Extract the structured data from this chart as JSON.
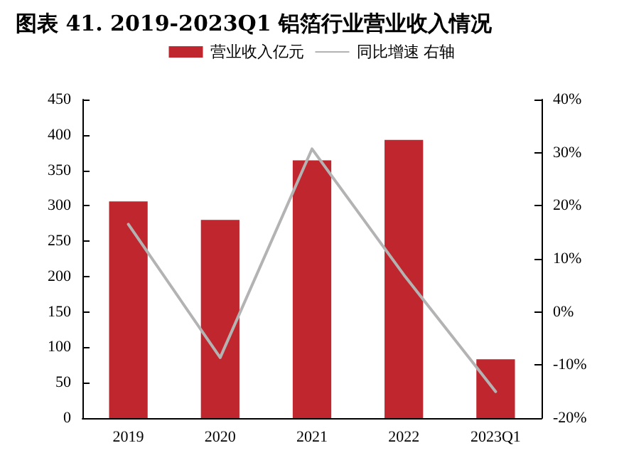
{
  "chart_data": {
    "type": "bar",
    "title": "图表 41. 2019-2023Q1 铝箔行业营业收入情况",
    "categories": [
      "2019",
      "2020",
      "2021",
      "2022",
      "2023Q1"
    ],
    "series": [
      {
        "name": "营业收入亿元",
        "color": "#c0262d",
        "values": [
          306,
          280,
          364,
          393,
          83
        ]
      },
      {
        "name": "同比增速 右轴",
        "type": "line",
        "axis": "y2",
        "color": "#b3b3b3",
        "values": [
          16.5,
          -8.6,
          30.7,
          7,
          -15
        ]
      }
    ],
    "ylim": [
      0,
      450
    ],
    "yticks": [
      0,
      50,
      100,
      150,
      200,
      250,
      300,
      350,
      400,
      450
    ],
    "y2lim": [
      -20,
      40
    ],
    "y2ticks": [
      {
        "value": -20,
        "label": "-20%"
      },
      {
        "value": -10,
        "label": "-10%"
      },
      {
        "value": 0,
        "label": "0%"
      },
      {
        "value": 10,
        "label": "10%"
      },
      {
        "value": 20,
        "label": "20%"
      },
      {
        "value": 30,
        "label": "30%"
      },
      {
        "value": 40,
        "label": "40%"
      }
    ],
    "grid": false,
    "legend": "top",
    "marker": "none",
    "line_style": "solid"
  }
}
